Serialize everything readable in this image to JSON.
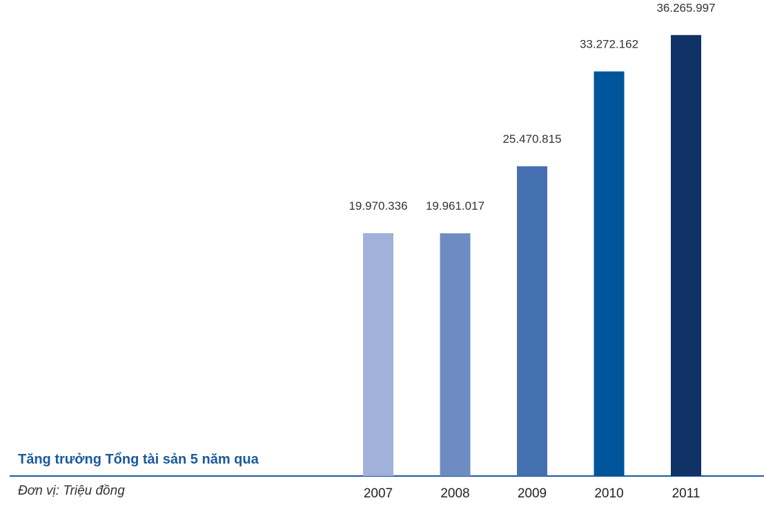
{
  "chart_data": {
    "type": "bar",
    "title": "Tăng trưởng Tổng tài sản 5 năm qua",
    "unit_label": "Đơn vị: Triệu đồng",
    "categories": [
      "2007",
      "2008",
      "2009",
      "2010",
      "2011"
    ],
    "values": [
      19970336,
      19961017,
      25470815,
      33272162,
      36265997
    ],
    "value_labels": [
      "19.970.336",
      "19.961.017",
      "25.470.815",
      "33.272.162",
      "36.265.997"
    ],
    "bar_colors": [
      "#a1b1da",
      "#6f8cc2",
      "#4571b0",
      "#01559b",
      "#113266"
    ],
    "baseline_color": "#1a5a9c",
    "ylim": [
      0,
      40000000
    ],
    "grid": false,
    "legend": "none"
  }
}
